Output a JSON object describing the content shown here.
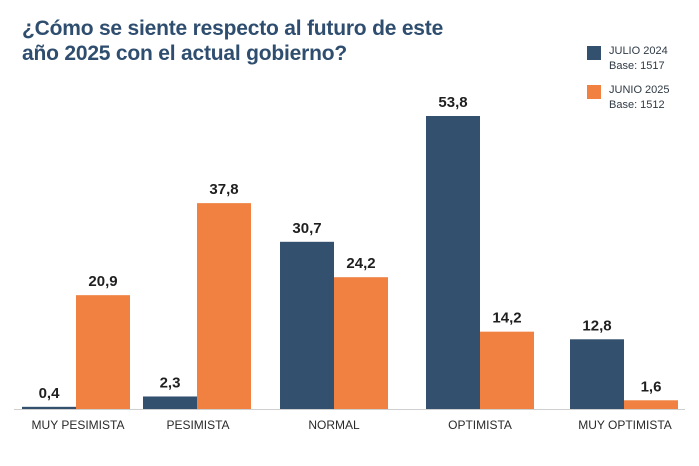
{
  "chart_data": {
    "type": "bar",
    "title_lines": [
      "¿Cómo se siente respecto al futuro de este",
      "año 2025 con el actual gobierno?"
    ],
    "categories": [
      "MUY PESIMISTA",
      "PESIMISTA",
      "NORMAL",
      "OPTIMISTA",
      "MUY OPTIMISTA"
    ],
    "series": [
      {
        "name": "JULIO 2024",
        "base": "Base: 1517",
        "color": "#33506f",
        "values": [
          0.4,
          2.3,
          30.7,
          53.8,
          12.8
        ],
        "labels": [
          "0,4",
          "2,3",
          "30,7",
          "53,8",
          "12,8"
        ]
      },
      {
        "name": "JUNIO 2025",
        "base": "Base: 1512",
        "color": "#f08140",
        "values": [
          20.9,
          37.8,
          24.2,
          14.2,
          1.6
        ],
        "labels": [
          "20,9",
          "37,8",
          "24,2",
          "14,2",
          "1,6"
        ]
      }
    ],
    "ylim": [
      0,
      53.8
    ],
    "grid": false,
    "legend": "top-right"
  }
}
